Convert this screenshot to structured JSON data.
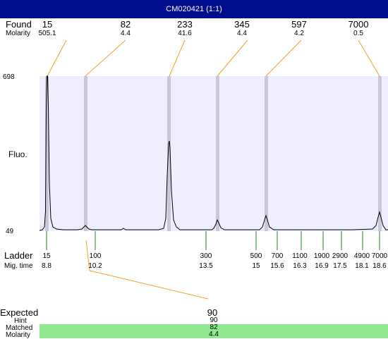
{
  "window": {
    "title": "CM020421 (1:1)"
  },
  "labels": {
    "found": "Found",
    "molarity": "Molarity",
    "fluo": "Fluo.",
    "ladder": "Ladder",
    "mig_time": "Mig. time",
    "expected": "Expected",
    "hint": "Hint",
    "matched": "Matched",
    "molarity2": "Molarity"
  },
  "y_axis": {
    "max": "698",
    "min": "49"
  },
  "found_peaks": [
    {
      "size": "15",
      "molarity": "505.1"
    },
    {
      "size": "82",
      "molarity": "4.4"
    },
    {
      "size": "233",
      "molarity": "41.6"
    },
    {
      "size": "345",
      "molarity": "4.4"
    },
    {
      "size": "597",
      "molarity": "4.2"
    },
    {
      "size": "7000",
      "molarity": "0.5"
    }
  ],
  "ladder": [
    {
      "size": "15",
      "time": "8.8"
    },
    {
      "size": "100",
      "time": "10.2"
    },
    {
      "size": "300",
      "time": "13.5"
    },
    {
      "size": "500",
      "time": "15"
    },
    {
      "size": "700",
      "time": "15.6"
    },
    {
      "size": "1100",
      "time": "16.3"
    },
    {
      "size": "1900",
      "time": "16.9"
    },
    {
      "size": "2900",
      "time": "17.5"
    },
    {
      "size": "4900",
      "time": "18.1"
    },
    {
      "size": "7000",
      "time": "18.6"
    }
  ],
  "result": {
    "expected": "90",
    "hint": "90",
    "matched": "82",
    "molarity": "4.4"
  },
  "colors": {
    "titlebar": "#000d8c",
    "plot_bg": "#eeeeff",
    "band": "#c8c8d8",
    "connector": "#f0a020",
    "ladder_tick": "#208020",
    "matched_bg": "#90e890"
  }
}
